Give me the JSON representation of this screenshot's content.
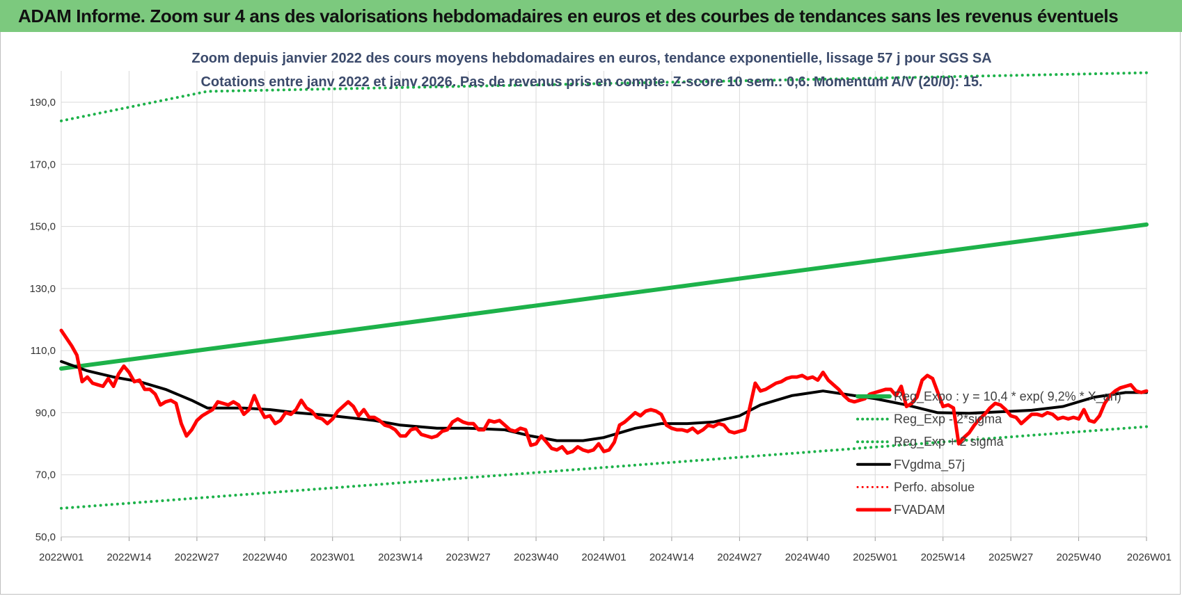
{
  "header": {
    "banner_title": "ADAM Informe. Zoom sur 4 ans des valorisations hebdomadaires en euros et des courbes de tendances sans les revenus éventuels"
  },
  "colors": {
    "banner": "#7cc97e",
    "green": "#1db24a",
    "black": "#000000",
    "red": "#ff0000",
    "grid": "#d9d9d9"
  },
  "chart_data": {
    "type": "line",
    "title_line1": "Zoom depuis janvier 2022 des cours moyens hebdomadaires en euros, tendance exponentielle, lissage 57 j pour SGS SA",
    "title_line2": "Cotations entre janv 2022 et janv 2026. Pas de revenus pris en compte. Z-score 10 sem.: 0,6. Momentum A/V (20/0): 15.",
    "xlabel": "",
    "ylabel": "",
    "ylim": [
      50,
      200
    ],
    "xlim": [
      0,
      208
    ],
    "y_ticks": [
      50,
      70,
      90,
      110,
      130,
      150,
      170,
      190
    ],
    "y_tick_labels": [
      "50,0",
      "70,0",
      "90,0",
      "110,0",
      "130,0",
      "150,0",
      "170,0",
      "190,0"
    ],
    "x_ticks": [
      0,
      13,
      26,
      39,
      52,
      65,
      78,
      91,
      104,
      117,
      130,
      143,
      156,
      169,
      182,
      195,
      208
    ],
    "x_tick_labels": [
      "2022W01",
      "2022W14",
      "2022W27",
      "2022W40",
      "2023W01",
      "2023W14",
      "2023W27",
      "2023W40",
      "2024W01",
      "2024W14",
      "2024W27",
      "2024W40",
      "2025W01",
      "2025W14",
      "2025W27",
      "2025W40",
      "2026W01"
    ],
    "legend_position": "right",
    "series": [
      {
        "name": "Reg_Expo : y = 10,4 * exp( 9,2% * X_an)",
        "style": "solid",
        "color": "#1db24a",
        "width": 6,
        "legend": true,
        "points": [
          [
            0,
            104.2
          ],
          [
            208,
            150.6
          ]
        ]
      },
      {
        "name": "Reg_Exp - 2*sigma",
        "style": "dotted",
        "color": "#1db24a",
        "width": 4,
        "legend": true,
        "points": [
          [
            0,
            59.2
          ],
          [
            208,
            85.5
          ]
        ]
      },
      {
        "name": "Reg_Exp + 2 sigma",
        "style": "dotted",
        "color": "#1db24a",
        "width": 4,
        "legend": true,
        "points": [
          [
            0,
            184.0
          ],
          [
            28,
            193.5
          ],
          [
            208,
            199.5
          ]
        ]
      },
      {
        "name": "FVgdma_57j",
        "style": "solid",
        "color": "#000000",
        "width": 4,
        "legend": true,
        "points": [
          [
            0,
            106.5
          ],
          [
            5,
            103.5
          ],
          [
            10,
            101.5
          ],
          [
            15,
            100.0
          ],
          [
            20,
            97.5
          ],
          [
            25,
            94.0
          ],
          [
            28,
            91.5
          ],
          [
            35,
            91.5
          ],
          [
            40,
            91.0
          ],
          [
            45,
            90.0
          ],
          [
            52,
            89.0
          ],
          [
            60,
            87.5
          ],
          [
            65,
            86.0
          ],
          [
            72,
            85.0
          ],
          [
            78,
            85.0
          ],
          [
            85,
            84.5
          ],
          [
            90,
            82.5
          ],
          [
            95,
            81.0
          ],
          [
            100,
            81.0
          ],
          [
            104,
            82.0
          ],
          [
            110,
            85.0
          ],
          [
            115,
            86.5
          ],
          [
            120,
            86.5
          ],
          [
            125,
            87.0
          ],
          [
            130,
            89.0
          ],
          [
            134,
            92.5
          ],
          [
            140,
            95.5
          ],
          [
            146,
            97.0
          ],
          [
            150,
            96.0
          ],
          [
            156,
            94.5
          ],
          [
            162,
            92.5
          ],
          [
            168,
            90.0
          ],
          [
            174,
            89.8
          ],
          [
            180,
            90.3
          ],
          [
            186,
            90.8
          ],
          [
            192,
            92.0
          ],
          [
            198,
            95.0
          ],
          [
            204,
            96.5
          ],
          [
            208,
            96.5
          ]
        ]
      },
      {
        "name": "Perfo. absolue",
        "style": "dotted",
        "color": "#ff0000",
        "width": 3,
        "legend": true,
        "points": []
      },
      {
        "name": "FVADAM",
        "style": "solid",
        "color": "#ff0000",
        "width": 5,
        "legend": true,
        "points": [
          [
            0,
            116.5
          ],
          [
            2,
            111.5
          ],
          [
            3,
            108.5
          ],
          [
            4,
            100.0
          ],
          [
            5,
            101.5
          ],
          [
            6,
            99.5
          ],
          [
            7,
            99.0
          ],
          [
            8,
            98.5
          ],
          [
            9,
            101.0
          ],
          [
            10,
            98.5
          ],
          [
            11,
            102.5
          ],
          [
            12,
            105.0
          ],
          [
            13,
            103.0
          ],
          [
            14,
            100.0
          ],
          [
            15,
            100.5
          ],
          [
            16,
            97.5
          ],
          [
            17,
            97.5
          ],
          [
            18,
            96.0
          ],
          [
            19,
            92.5
          ],
          [
            20,
            93.5
          ],
          [
            21,
            94.0
          ],
          [
            22,
            93.0
          ],
          [
            23,
            86.5
          ],
          [
            24,
            82.5
          ],
          [
            25,
            84.5
          ],
          [
            26,
            87.5
          ],
          [
            27,
            89.0
          ],
          [
            28,
            90.0
          ],
          [
            29,
            91.0
          ],
          [
            30,
            93.5
          ],
          [
            31,
            93.0
          ],
          [
            32,
            92.5
          ],
          [
            33,
            93.5
          ],
          [
            34,
            92.5
          ],
          [
            35,
            89.5
          ],
          [
            36,
            91.0
          ],
          [
            37,
            95.5
          ],
          [
            38,
            91.5
          ],
          [
            39,
            88.5
          ],
          [
            40,
            89.0
          ],
          [
            41,
            86.5
          ],
          [
            42,
            87.5
          ],
          [
            43,
            90.0
          ],
          [
            44,
            89.5
          ],
          [
            45,
            91.0
          ],
          [
            46,
            94.0
          ],
          [
            47,
            91.5
          ],
          [
            48,
            90.5
          ],
          [
            49,
            88.5
          ],
          [
            50,
            88.0
          ],
          [
            51,
            86.5
          ],
          [
            52,
            88.0
          ],
          [
            53,
            90.5
          ],
          [
            54,
            92.0
          ],
          [
            55,
            93.5
          ],
          [
            56,
            92.0
          ],
          [
            57,
            89.0
          ],
          [
            58,
            91.0
          ],
          [
            59,
            88.5
          ],
          [
            60,
            88.5
          ],
          [
            61,
            87.5
          ],
          [
            62,
            86.0
          ],
          [
            63,
            85.5
          ],
          [
            64,
            84.5
          ],
          [
            65,
            82.5
          ],
          [
            66,
            82.5
          ],
          [
            67,
            84.5
          ],
          [
            68,
            85.0
          ],
          [
            69,
            83.0
          ],
          [
            70,
            82.5
          ],
          [
            71,
            82.0
          ],
          [
            72,
            82.5
          ],
          [
            73,
            84.0
          ],
          [
            74,
            84.5
          ],
          [
            75,
            87.0
          ],
          [
            76,
            88.0
          ],
          [
            77,
            87.0
          ],
          [
            78,
            86.5
          ],
          [
            79,
            86.5
          ],
          [
            80,
            84.5
          ],
          [
            81,
            84.5
          ],
          [
            82,
            87.5
          ],
          [
            83,
            87.0
          ],
          [
            84,
            87.5
          ],
          [
            85,
            86.0
          ],
          [
            86,
            84.5
          ],
          [
            87,
            84.0
          ],
          [
            88,
            85.0
          ],
          [
            89,
            84.5
          ],
          [
            90,
            79.5
          ],
          [
            91,
            80.0
          ],
          [
            92,
            82.5
          ],
          [
            93,
            80.5
          ],
          [
            94,
            78.5
          ],
          [
            95,
            78.0
          ],
          [
            96,
            79.0
          ],
          [
            97,
            77.0
          ],
          [
            98,
            77.5
          ],
          [
            99,
            79.0
          ],
          [
            100,
            78.0
          ],
          [
            101,
            77.5
          ],
          [
            102,
            78.0
          ],
          [
            103,
            80.0
          ],
          [
            104,
            77.5
          ],
          [
            105,
            78.0
          ],
          [
            106,
            80.5
          ],
          [
            107,
            86.0
          ],
          [
            108,
            87.0
          ],
          [
            109,
            88.5
          ],
          [
            110,
            90.0
          ],
          [
            111,
            89.0
          ],
          [
            112,
            90.5
          ],
          [
            113,
            91.0
          ],
          [
            114,
            90.5
          ],
          [
            115,
            89.5
          ],
          [
            116,
            86.0
          ],
          [
            117,
            85.0
          ],
          [
            118,
            84.5
          ],
          [
            119,
            84.5
          ],
          [
            120,
            84.0
          ],
          [
            121,
            85.0
          ],
          [
            122,
            83.5
          ],
          [
            123,
            84.5
          ],
          [
            124,
            86.0
          ],
          [
            125,
            85.5
          ],
          [
            126,
            86.5
          ],
          [
            127,
            86.0
          ],
          [
            128,
            84.0
          ],
          [
            129,
            83.5
          ],
          [
            130,
            84.0
          ],
          [
            131,
            84.5
          ],
          [
            132,
            92.0
          ],
          [
            133,
            99.5
          ],
          [
            134,
            97.0
          ],
          [
            135,
            97.5
          ],
          [
            136,
            98.5
          ],
          [
            137,
            99.5
          ],
          [
            138,
            100.0
          ],
          [
            139,
            101.0
          ],
          [
            140,
            101.5
          ],
          [
            141,
            101.5
          ],
          [
            142,
            102.0
          ],
          [
            143,
            101.0
          ],
          [
            144,
            101.5
          ],
          [
            145,
            100.5
          ],
          [
            146,
            103.0
          ],
          [
            147,
            100.5
          ],
          [
            148,
            99.0
          ],
          [
            149,
            97.5
          ],
          [
            150,
            95.5
          ],
          [
            151,
            94.0
          ],
          [
            152,
            93.5
          ],
          [
            153,
            94.0
          ],
          [
            154,
            94.5
          ],
          [
            155,
            96.0
          ],
          [
            156,
            96.5
          ],
          [
            157,
            97.0
          ],
          [
            158,
            97.5
          ],
          [
            159,
            97.5
          ],
          [
            160,
            95.5
          ],
          [
            161,
            98.5
          ],
          [
            162,
            92.0
          ],
          [
            163,
            93.0
          ],
          [
            164,
            95.0
          ],
          [
            165,
            100.5
          ],
          [
            166,
            102.0
          ],
          [
            167,
            101.0
          ],
          [
            168,
            96.5
          ],
          [
            169,
            92.0
          ],
          [
            170,
            92.5
          ],
          [
            171,
            91.5
          ],
          [
            172,
            80.0
          ],
          [
            173,
            82.0
          ],
          [
            174,
            83.5
          ],
          [
            175,
            86.0
          ],
          [
            176,
            88.0
          ],
          [
            177,
            89.5
          ],
          [
            178,
            91.5
          ],
          [
            179,
            93.0
          ],
          [
            180,
            92.5
          ],
          [
            181,
            91.0
          ],
          [
            182,
            89.0
          ],
          [
            183,
            88.5
          ],
          [
            184,
            86.5
          ],
          [
            185,
            88.0
          ],
          [
            186,
            89.5
          ],
          [
            187,
            89.5
          ],
          [
            188,
            89.0
          ],
          [
            189,
            90.0
          ],
          [
            190,
            89.5
          ],
          [
            191,
            88.0
          ],
          [
            192,
            88.5
          ],
          [
            193,
            88.0
          ],
          [
            194,
            88.5
          ],
          [
            195,
            88.0
          ],
          [
            196,
            91.0
          ],
          [
            197,
            87.5
          ],
          [
            198,
            87.0
          ],
          [
            199,
            89.0
          ],
          [
            200,
            93.0
          ],
          [
            201,
            95.5
          ],
          [
            202,
            97.0
          ],
          [
            203,
            98.0
          ],
          [
            204,
            98.5
          ],
          [
            205,
            99.0
          ],
          [
            206,
            97.0
          ],
          [
            207,
            96.5
          ],
          [
            208,
            97.0
          ]
        ]
      }
    ]
  }
}
